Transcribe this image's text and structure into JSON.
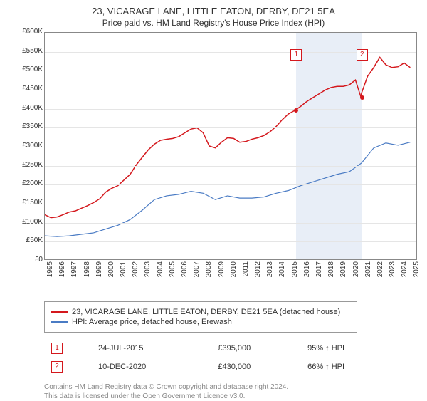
{
  "title": "23, VICARAGE LANE, LITTLE EATON, DERBY, DE21 5EA",
  "subtitle": "Price paid vs. HM Land Registry's House Price Index (HPI)",
  "chart": {
    "type": "line",
    "background_color": "#ffffff",
    "grid_color": "#e5e5e5",
    "border_color": "#888888",
    "ylim": [
      0,
      600000
    ],
    "ytick_step": 50000,
    "ytick_labels": [
      "£0",
      "£50K",
      "£100K",
      "£150K",
      "£200K",
      "£250K",
      "£300K",
      "£350K",
      "£400K",
      "£450K",
      "£500K",
      "£550K",
      "£600K"
    ],
    "x_years": [
      1995,
      1996,
      1997,
      1998,
      1999,
      2000,
      2001,
      2002,
      2003,
      2004,
      2005,
      2006,
      2007,
      2008,
      2009,
      2010,
      2011,
      2012,
      2013,
      2014,
      2015,
      2016,
      2017,
      2018,
      2019,
      2020,
      2021,
      2022,
      2023,
      2024,
      2025
    ],
    "x_range": [
      1995,
      2025.5
    ],
    "band": {
      "start": 2015.56,
      "end": 2020.95,
      "color": "#e8eef7"
    },
    "series": [
      {
        "name": "property",
        "label": "23, VICARAGE LANE, LITTLE EATON, DERBY, DE21 5EA (detached house)",
        "color": "#d4181d",
        "line_width": 1.5,
        "data": [
          [
            1995,
            118000
          ],
          [
            1995.5,
            110000
          ],
          [
            1996,
            112000
          ],
          [
            1996.5,
            118000
          ],
          [
            1997,
            125000
          ],
          [
            1997.5,
            128000
          ],
          [
            1998,
            135000
          ],
          [
            1998.5,
            142000
          ],
          [
            1999,
            150000
          ],
          [
            1999.5,
            160000
          ],
          [
            2000,
            178000
          ],
          [
            2000.5,
            188000
          ],
          [
            2001,
            195000
          ],
          [
            2001.5,
            210000
          ],
          [
            2002,
            225000
          ],
          [
            2002.5,
            250000
          ],
          [
            2003,
            270000
          ],
          [
            2003.5,
            290000
          ],
          [
            2004,
            305000
          ],
          [
            2004.5,
            315000
          ],
          [
            2005,
            318000
          ],
          [
            2005.5,
            320000
          ],
          [
            2006,
            325000
          ],
          [
            2006.5,
            335000
          ],
          [
            2007,
            345000
          ],
          [
            2007.5,
            348000
          ],
          [
            2008,
            335000
          ],
          [
            2008.5,
            300000
          ],
          [
            2009,
            295000
          ],
          [
            2009.5,
            310000
          ],
          [
            2010,
            322000
          ],
          [
            2010.5,
            320000
          ],
          [
            2011,
            310000
          ],
          [
            2011.5,
            312000
          ],
          [
            2012,
            318000
          ],
          [
            2012.5,
            322000
          ],
          [
            2013,
            328000
          ],
          [
            2013.5,
            338000
          ],
          [
            2014,
            352000
          ],
          [
            2014.5,
            370000
          ],
          [
            2015,
            385000
          ],
          [
            2015.56,
            395000
          ],
          [
            2016,
            405000
          ],
          [
            2016.5,
            418000
          ],
          [
            2017,
            428000
          ],
          [
            2017.5,
            438000
          ],
          [
            2018,
            448000
          ],
          [
            2018.5,
            455000
          ],
          [
            2019,
            458000
          ],
          [
            2019.5,
            458000
          ],
          [
            2020,
            462000
          ],
          [
            2020.5,
            475000
          ],
          [
            2020.95,
            430000
          ],
          [
            2021,
            440000
          ],
          [
            2021.5,
            485000
          ],
          [
            2022,
            508000
          ],
          [
            2022.5,
            535000
          ],
          [
            2023,
            515000
          ],
          [
            2023.5,
            508000
          ],
          [
            2024,
            510000
          ],
          [
            2024.5,
            520000
          ],
          [
            2025,
            508000
          ]
        ]
      },
      {
        "name": "hpi",
        "label": "HPI: Average price, detached house, Erewash",
        "color": "#4a7bc4",
        "line_width": 1.2,
        "data": [
          [
            1995,
            62000
          ],
          [
            1996,
            60000
          ],
          [
            1997,
            62000
          ],
          [
            1998,
            66000
          ],
          [
            1999,
            70000
          ],
          [
            2000,
            80000
          ],
          [
            2001,
            90000
          ],
          [
            2002,
            105000
          ],
          [
            2003,
            130000
          ],
          [
            2004,
            158000
          ],
          [
            2005,
            168000
          ],
          [
            2006,
            172000
          ],
          [
            2007,
            180000
          ],
          [
            2008,
            175000
          ],
          [
            2009,
            158000
          ],
          [
            2010,
            168000
          ],
          [
            2011,
            162000
          ],
          [
            2012,
            162000
          ],
          [
            2013,
            165000
          ],
          [
            2014,
            175000
          ],
          [
            2015,
            182000
          ],
          [
            2016,
            195000
          ],
          [
            2017,
            205000
          ],
          [
            2018,
            215000
          ],
          [
            2019,
            225000
          ],
          [
            2020,
            232000
          ],
          [
            2021,
            255000
          ],
          [
            2022,
            295000
          ],
          [
            2023,
            308000
          ],
          [
            2024,
            302000
          ],
          [
            2025,
            310000
          ]
        ]
      }
    ],
    "markers": [
      {
        "num": "1",
        "x": 2015.56,
        "y": 395000,
        "box_y": 23
      },
      {
        "num": "2",
        "x": 2020.95,
        "y": 430000,
        "box_y": 23
      }
    ]
  },
  "legend": {
    "items": [
      {
        "color": "#d4181d",
        "label": "23, VICARAGE LANE, LITTLE EATON, DERBY, DE21 5EA (detached house)"
      },
      {
        "color": "#4a7bc4",
        "label": "HPI: Average price, detached house, Erewash"
      }
    ]
  },
  "transactions": [
    {
      "num": "1",
      "date": "24-JUL-2015",
      "price": "£395,000",
      "pct": "95%",
      "arrow": "↑",
      "ref": "HPI"
    },
    {
      "num": "2",
      "date": "10-DEC-2020",
      "price": "£430,000",
      "pct": "66%",
      "arrow": "↑",
      "ref": "HPI"
    }
  ],
  "footnote": {
    "line1": "Contains HM Land Registry data © Crown copyright and database right 2024.",
    "line2": "This data is licensed under the Open Government Licence v3.0."
  },
  "marker_box_border": "#d4181d"
}
